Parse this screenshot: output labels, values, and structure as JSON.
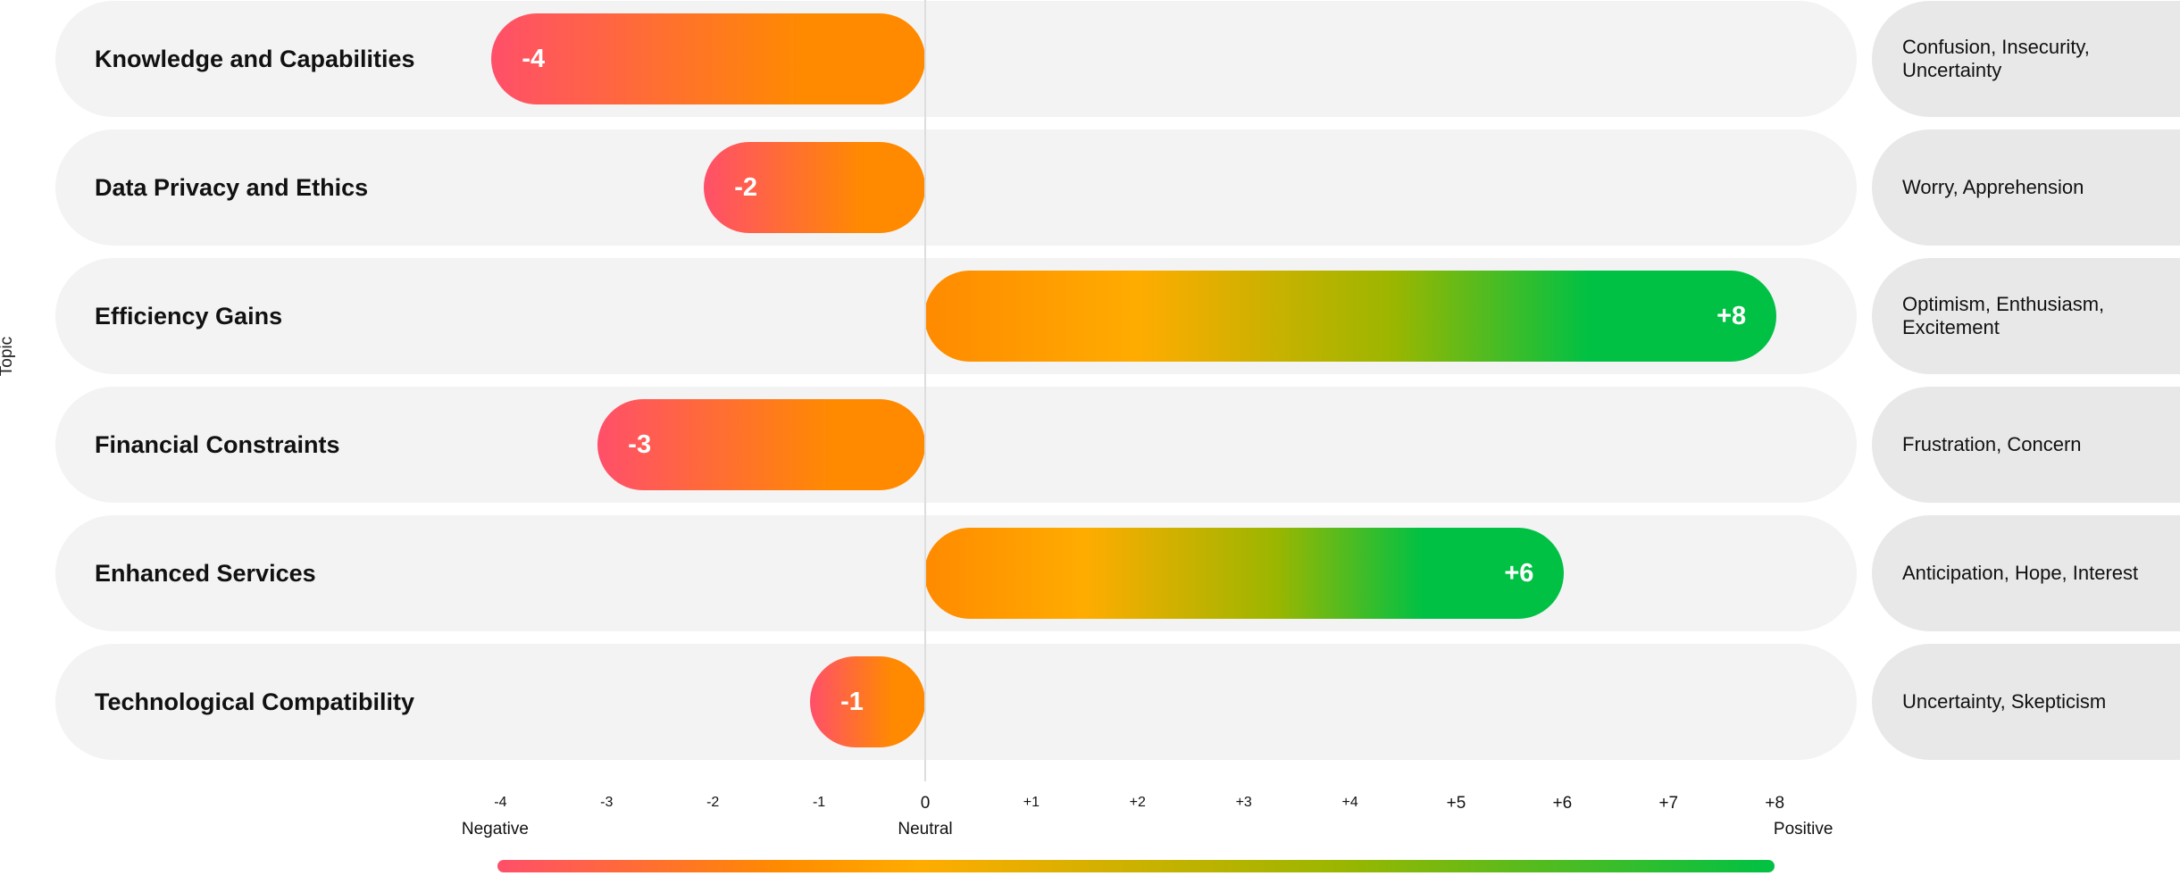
{
  "chart_data": {
    "type": "bar",
    "orientation": "horizontal",
    "ylabel": "Topic",
    "xlim": [
      -4,
      8
    ],
    "categories": [
      "Knowledge and Capabilities",
      "Data Privacy and Ethics",
      "Efficiency Gains",
      "Financial Constraints",
      "Enhanced Services",
      "Technological Compatibility"
    ],
    "values": [
      -4,
      -2,
      8,
      -3,
      6,
      -1
    ],
    "value_labels": [
      "-4",
      "-2",
      "+8",
      "-3",
      "+6",
      "-1"
    ],
    "emotions": [
      "Confusion, Insecurity, Uncertainty",
      "Worry, Apprehension",
      "Optimism, Enthusiasm, Excitement",
      "Frustration, Concern",
      "Anticipation, Hope, Interest",
      "Uncertainty, Skepticism"
    ],
    "ticks": [
      "-4",
      "-3",
      "-2",
      "-1",
      "0",
      "+1",
      "+2",
      "+3",
      "+4",
      "+5",
      "+6",
      "+7",
      "+8"
    ],
    "scale_labels": {
      "negative": "Negative",
      "neutral": "Neutral",
      "positive": "Positive"
    },
    "grid": false,
    "colors": {
      "strong_negative": "#ff4f6a",
      "negative": "#ff8a00",
      "neutral": "#ffac00",
      "positive_mid": "#9bb600",
      "strong_positive": "#00c144",
      "row_background": "#f3f3f3",
      "emotion_background": "#e8e8e8"
    }
  }
}
